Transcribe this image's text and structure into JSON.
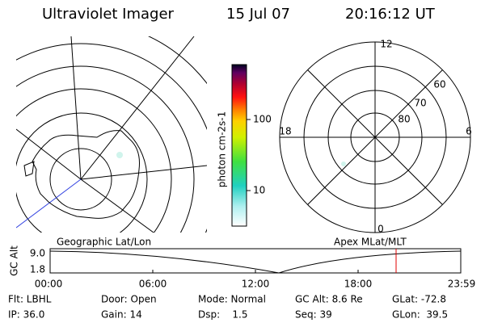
{
  "header": {
    "instrument": "Ultraviolet Imager",
    "date": "15 Jul 07",
    "time": "20:16:12 UT"
  },
  "colorbar": {
    "label": "photon cm-2s-1",
    "ticks": [
      "100",
      "10"
    ]
  },
  "left_panel": {
    "caption": "Geographic Lat/Lon"
  },
  "right_panel": {
    "caption": "Apex MLat/MLT",
    "mlt_labels": [
      "12",
      "18",
      "6",
      "0"
    ],
    "lat_labels": [
      "60",
      "70",
      "80"
    ]
  },
  "altitude_plot": {
    "ylabel": "GC Alt",
    "yticks": [
      "9.0",
      "1.8"
    ],
    "xticks": [
      "00:00",
      "06:00",
      "12:00",
      "18:00",
      "23:59"
    ]
  },
  "info": {
    "rows": [
      [
        "Flt: LBHL",
        "Door: Open",
        "Mode: Normal",
        "GC Alt: 8.6 Re",
        "GLat: -72.8"
      ],
      [
        "IP: 36.0",
        "Gain: 14",
        "Dsp:    1.5",
        "Seq: 39",
        "GLon:  39.5"
      ]
    ]
  }
}
